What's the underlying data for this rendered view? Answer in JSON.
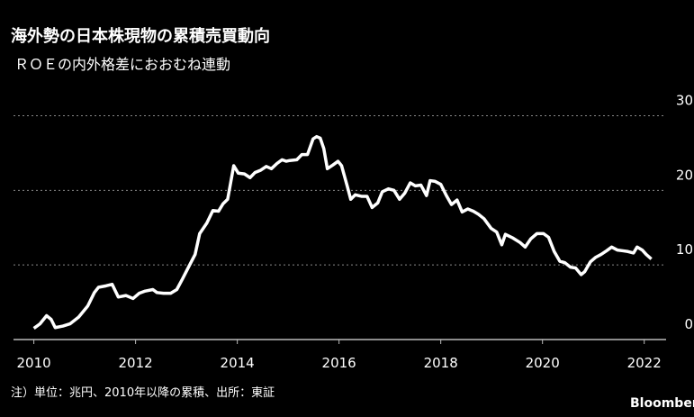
{
  "chart_data": {
    "type": "line",
    "title": "海外勢の日本株現物の累積売買動向",
    "subtitle": "ＲＯＥの内外格差におおむね連動",
    "note": "注）単位：兆円、2010年以降の累積、出所：東証",
    "source": "Bloomberg",
    "x": [
      2010.0,
      2010.12,
      2010.25,
      2010.34,
      2010.42,
      2010.57,
      2010.71,
      2010.88,
      2011.06,
      2011.19,
      2011.27,
      2011.42,
      2011.54,
      2011.66,
      2011.81,
      2011.95,
      2012.07,
      2012.19,
      2012.34,
      2012.42,
      2012.55,
      2012.69,
      2012.81,
      2012.92,
      2013.04,
      2013.17,
      2013.26,
      2013.4,
      2013.52,
      2013.63,
      2013.72,
      2013.81,
      2013.93,
      2014.02,
      2014.14,
      2014.25,
      2014.35,
      2014.46,
      2014.57,
      2014.67,
      2014.78,
      2014.88,
      2014.96,
      2015.03,
      2015.17,
      2015.27,
      2015.38,
      2015.49,
      2015.56,
      2015.63,
      2015.7,
      2015.77,
      2015.88,
      2015.98,
      2016.05,
      2016.16,
      2016.23,
      2016.32,
      2016.44,
      2016.55,
      2016.65,
      2016.76,
      2016.85,
      2016.97,
      2017.08,
      2017.19,
      2017.29,
      2017.4,
      2017.5,
      2017.61,
      2017.72,
      2017.79,
      2017.89,
      2018.0,
      2018.11,
      2018.21,
      2018.32,
      2018.42,
      2018.53,
      2018.64,
      2018.74,
      2018.85,
      2018.99,
      2019.1,
      2019.2,
      2019.27,
      2019.42,
      2019.56,
      2019.66,
      2019.77,
      2019.89,
      2020.02,
      2020.12,
      2020.23,
      2020.34,
      2020.44,
      2020.55,
      2020.65,
      2020.76,
      2020.83,
      2020.94,
      2021.04,
      2021.15,
      2021.26,
      2021.36,
      2021.47,
      2021.58,
      2021.68,
      2021.79,
      2021.86,
      2021.96,
      2022.04,
      2022.14
    ],
    "series": [
      {
        "color": "#ffffff",
        "values": [
          1.5,
          2.1,
          3.2,
          2.7,
          1.6,
          1.8,
          2.1,
          3.0,
          4.5,
          6.3,
          7.0,
          7.2,
          7.4,
          5.7,
          5.9,
          5.5,
          6.2,
          6.5,
          6.7,
          6.3,
          6.2,
          6.2,
          6.7,
          8.1,
          9.7,
          11.4,
          14.2,
          15.6,
          17.3,
          17.2,
          18.2,
          18.8,
          23.3,
          22.3,
          22.2,
          21.7,
          22.4,
          22.7,
          23.2,
          22.9,
          23.6,
          24.1,
          23.9,
          24.0,
          24.1,
          24.8,
          24.8,
          26.9,
          27.2,
          27.0,
          25.6,
          22.9,
          23.4,
          23.9,
          23.3,
          20.6,
          18.8,
          19.4,
          19.2,
          19.2,
          17.7,
          18.3,
          19.8,
          20.2,
          20.0,
          18.8,
          19.6,
          21.0,
          20.6,
          20.7,
          19.3,
          21.3,
          21.2,
          20.8,
          19.3,
          18.1,
          18.7,
          17.1,
          17.5,
          17.2,
          16.8,
          16.2,
          14.9,
          14.4,
          12.7,
          14.1,
          13.6,
          13.0,
          12.4,
          13.5,
          14.2,
          14.2,
          13.7,
          11.8,
          10.5,
          10.3,
          9.7,
          9.6,
          8.7,
          9.1,
          10.4,
          11.0,
          11.4,
          11.9,
          12.4,
          12.0,
          11.9,
          11.8,
          11.6,
          12.4,
          12.0,
          11.4,
          10.8
        ]
      }
    ],
    "xlim": [
      2009.6,
      2022.43
    ],
    "xticks": [
      2010,
      2012,
      2014,
      2016,
      2018,
      2020,
      2022
    ],
    "ylim": [
      0,
      30
    ],
    "yticks": [
      0,
      10,
      20,
      30
    ],
    "grid": true
  }
}
